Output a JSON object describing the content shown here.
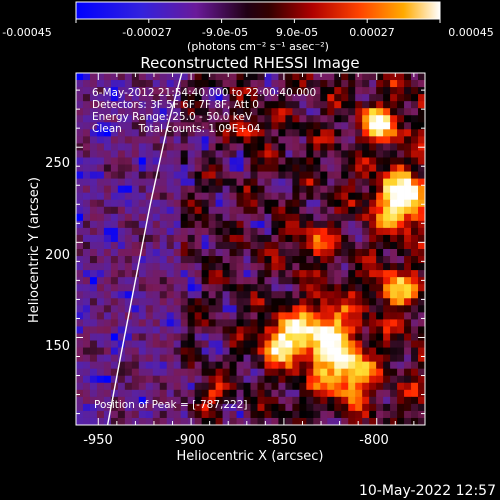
{
  "colorbar": {
    "tick_labels": [
      "-0.00045",
      "-0.00027",
      "-9.0e-05",
      "9.0e-05",
      "0.00027",
      "0.00045"
    ],
    "tick_values": [
      -0.00045,
      -0.00027,
      -9e-05,
      9e-05,
      0.00027,
      0.00045
    ],
    "range": [
      -0.00045,
      0.00045
    ],
    "unit_label": "(photons cm⁻² s⁻¹ asec⁻²)"
  },
  "chart_data": {
    "type": "heatmap",
    "title": "Reconstructed RHESSI Image",
    "xlabel": "Heliocentric X (arcsec)",
    "ylabel": "Heliocentric Y (arcsec)",
    "xlim": [
      -962,
      -774
    ],
    "ylim": [
      104,
      289
    ],
    "x_ticks": [
      -950,
      -900,
      -850,
      -800
    ],
    "y_ticks": [
      150,
      200,
      250
    ],
    "annotations": [
      "6-May-2012 21:54:40.000 to 22:00:40.000",
      "Detectors: 3F 5F 6F 7F 8F, Att 0",
      "Energy Range: 25.0 - 50.0 keV",
      "Clean     Total counts: 1.09E+04"
    ],
    "peak_label": "Position of Peak = [-787,222]",
    "peak": [
      -787,
      222
    ],
    "limb_curve": [
      [
        -945,
        104
      ],
      [
        -938,
        140
      ],
      [
        -930,
        180
      ],
      [
        -922,
        220
      ],
      [
        -913,
        260
      ],
      [
        -905,
        289
      ]
    ],
    "colormap": [
      "#0000ff",
      "#5522aa",
      "#7a1a55",
      "#000000",
      "#8b0000",
      "#ff2200",
      "#ff8800",
      "#ffdd33",
      "#ffffff"
    ]
  },
  "footer": {
    "timestamp": "10-May-2022 12:57"
  }
}
